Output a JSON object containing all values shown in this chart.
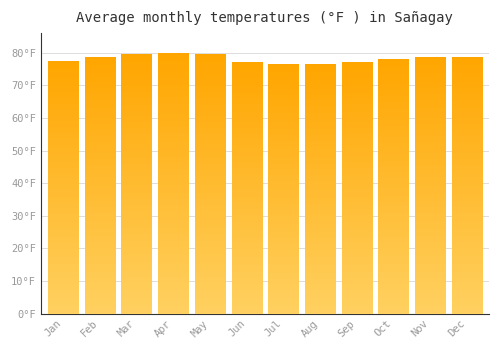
{
  "months": [
    "Jan",
    "Feb",
    "Mar",
    "Apr",
    "May",
    "Jun",
    "Jul",
    "Aug",
    "Sep",
    "Oct",
    "Nov",
    "Dec"
  ],
  "values": [
    77.5,
    78.5,
    79.5,
    80.0,
    79.5,
    77.0,
    76.5,
    76.5,
    77.0,
    78.0,
    78.5,
    78.5
  ],
  "bar_color": "#FFA500",
  "bar_color_light": "#FFD060",
  "background_color": "#ffffff",
  "plot_bg_color": "#ffffff",
  "title": "Average monthly temperatures (°F ) in Sañagay",
  "title_fontsize": 10,
  "ylim": [
    0,
    86
  ],
  "yticks": [
    0,
    10,
    20,
    30,
    40,
    50,
    60,
    70,
    80
  ],
  "ytick_labels": [
    "0°F",
    "10°F",
    "20°F",
    "30°F",
    "40°F",
    "50°F",
    "60°F",
    "70°F",
    "80°F"
  ],
  "grid_color": "#dddddd",
  "text_color": "#999999",
  "spine_color": "#333333"
}
